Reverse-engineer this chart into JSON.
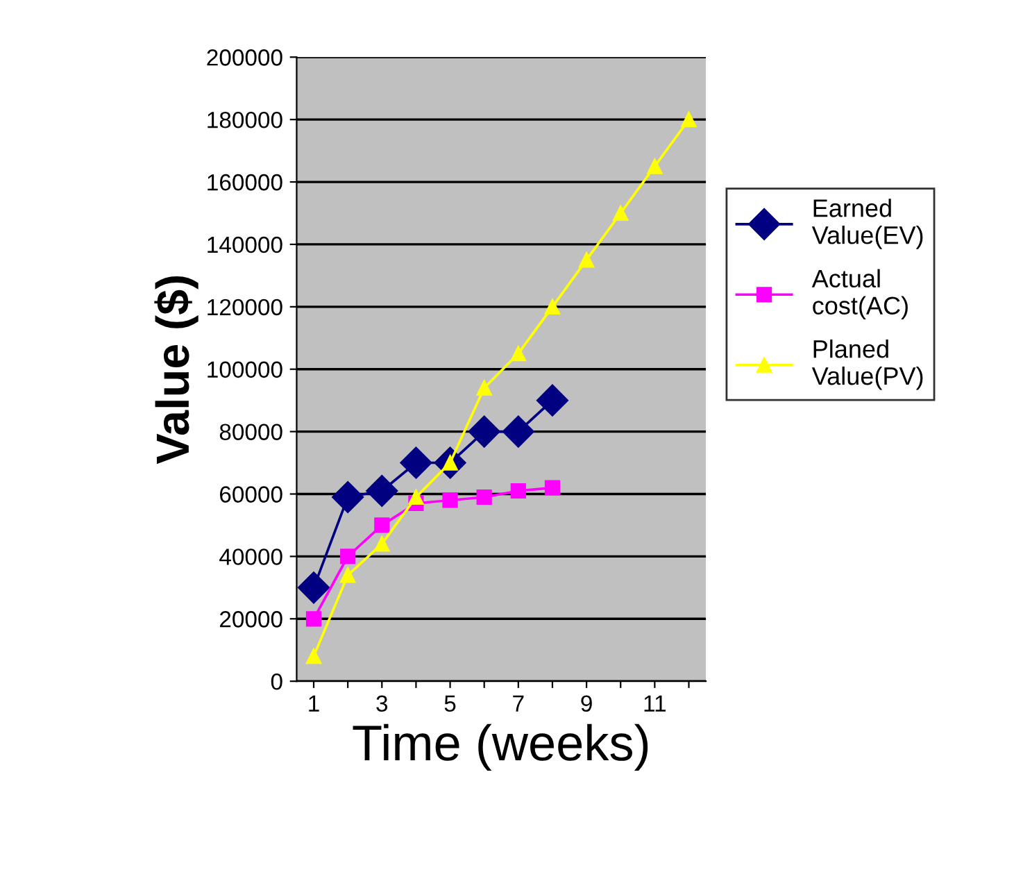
{
  "chart_data": {
    "type": "line",
    "xlabel": "Time (weeks)",
    "ylabel": "Value ($)",
    "categories": [
      "1",
      null,
      "3",
      null,
      "5",
      null,
      "7",
      null,
      "9",
      null,
      "11",
      null
    ],
    "series": [
      {
        "name": "Earned Value(EV)",
        "color": "#000080",
        "marker": "diamond",
        "values": [
          30000,
          59000,
          61000,
          70000,
          70000,
          80000,
          80000,
          90000,
          null,
          null,
          null,
          null
        ]
      },
      {
        "name": "Actual cost(AC)",
        "color": "#ff00ff",
        "marker": "square",
        "values": [
          20000,
          40000,
          50000,
          57000,
          58000,
          59000,
          61000,
          62000,
          null,
          null,
          null,
          null
        ]
      },
      {
        "name": "Planed Value(PV)",
        "color": "#ffff00",
        "marker": "triangle",
        "values": [
          8000,
          34000,
          44000,
          59000,
          70000,
          94000,
          105000,
          120000,
          135000,
          150000,
          165000,
          180000
        ]
      }
    ],
    "ylim": [
      0,
      200000
    ],
    "yticks": [
      0,
      20000,
      40000,
      60000,
      80000,
      100000,
      120000,
      140000,
      160000,
      180000,
      200000
    ],
    "grid": "y",
    "legend": "right"
  }
}
